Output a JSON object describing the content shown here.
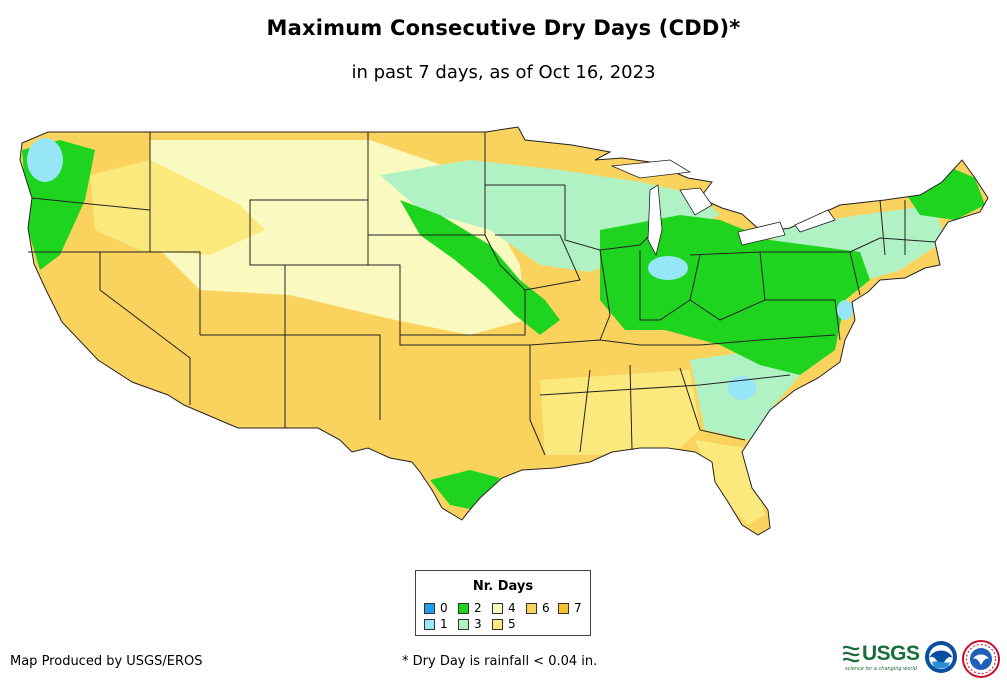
{
  "title": "Maximum Consecutive Dry Days (CDD)*",
  "subtitle": "in past 7 days, as of Oct 16, 2023",
  "legend": {
    "title": "Nr. Days",
    "items": [
      {
        "label": "0",
        "color": "#1f9fe6"
      },
      {
        "label": "1",
        "color": "#96e6f8"
      },
      {
        "label": "2",
        "color": "#1fd41f"
      },
      {
        "label": "3",
        "color": "#b0f2c4"
      },
      {
        "label": "4",
        "color": "#fafac0"
      },
      {
        "label": "5",
        "color": "#fbe97d"
      },
      {
        "label": "6",
        "color": "#fad35f"
      },
      {
        "label": "7",
        "color": "#f7c22c"
      }
    ]
  },
  "credit": "Map Produced by USGS/EROS",
  "footnote": "* Dry Day is rainfall < 0.04 in.",
  "logos": {
    "usgs": "USGS",
    "usgs_tagline": "science for a changing world"
  },
  "colors": {
    "border": "#222222",
    "background": "#ffffff"
  }
}
